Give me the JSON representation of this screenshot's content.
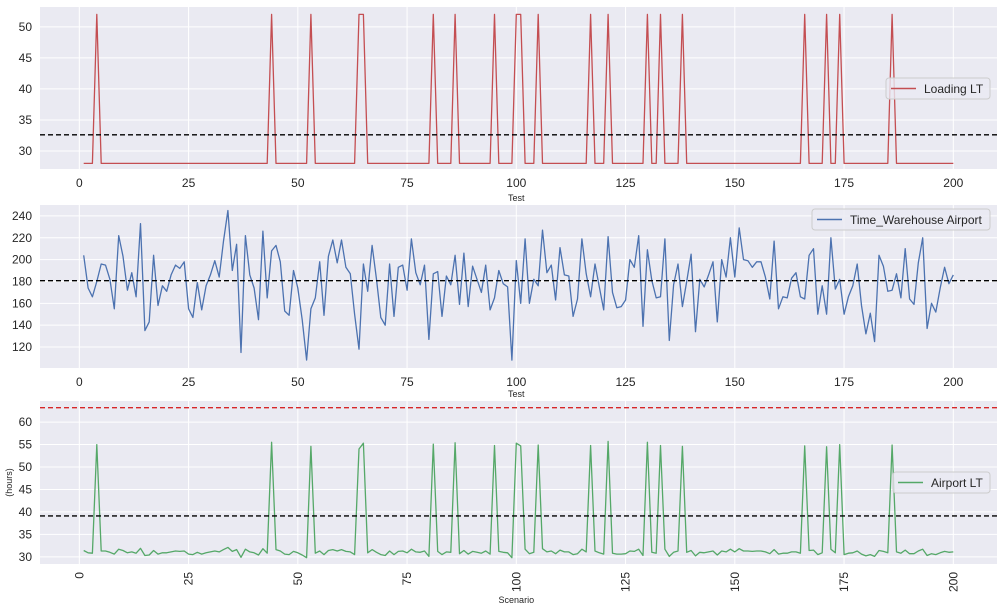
{
  "chart_data": [
    {
      "type": "line",
      "xlabel": "Test",
      "ylabel": "",
      "xlim": [
        -9,
        210
      ],
      "ylim": [
        27.1,
        53.2
      ],
      "xticks": [
        0,
        25,
        50,
        75,
        100,
        125,
        150,
        175,
        200
      ],
      "yticks": [
        30,
        35,
        40,
        45,
        50
      ],
      "grid": true,
      "legend_position": "center-right",
      "series": [
        {
          "name": "Loading LT",
          "color": "#c44e52",
          "x_start": 1,
          "baseline": 28,
          "spike_value": 52,
          "spike_x": [
            4,
            44,
            53,
            64,
            65,
            81,
            86,
            95,
            100,
            101,
            105,
            117,
            121,
            130,
            133,
            138,
            166,
            171,
            174,
            186
          ],
          "x_end": 200
        }
      ],
      "hlines": [
        {
          "y": 32.6,
          "color": "#000000",
          "style": "dashed"
        }
      ]
    },
    {
      "type": "line",
      "xlabel": "Test",
      "ylabel": "",
      "xlim": [
        -9,
        210
      ],
      "ylim": [
        100.8,
        250
      ],
      "xticks": [
        0,
        25,
        50,
        75,
        100,
        125,
        150,
        175,
        200
      ],
      "yticks": [
        120,
        140,
        160,
        180,
        200,
        220,
        240
      ],
      "grid": true,
      "legend_position": "top-right",
      "series": [
        {
          "name": "Time_Warehouse Airport",
          "color": "#4c72b0",
          "x_start": 1,
          "values": [
            204,
            174,
            166,
            180,
            196,
            195,
            182,
            155,
            222,
            203,
            172,
            188,
            166,
            233,
            135,
            143,
            204,
            158,
            176,
            171,
            186,
            195,
            192,
            198,
            155,
            147,
            179,
            154,
            176,
            186,
            199,
            184,
            217,
            245,
            190,
            214,
            115,
            222,
            186,
            174,
            145,
            226,
            165,
            208,
            213,
            198,
            153,
            149,
            190,
            174,
            145,
            108,
            155,
            165,
            198,
            149,
            203,
            218,
            197,
            218,
            193,
            187,
            150,
            118,
            196,
            171,
            213,
            182,
            147,
            140,
            196,
            148,
            193,
            195,
            172,
            219,
            188,
            177,
            195,
            127,
            187,
            189,
            148,
            185,
            177,
            204,
            159,
            206,
            157,
            194,
            182,
            170,
            195,
            154,
            165,
            190,
            178,
            175,
            108,
            199,
            160,
            219,
            160,
            182,
            176,
            227,
            188,
            195,
            163,
            211,
            186,
            185,
            148,
            164,
            219,
            187,
            166,
            196,
            175,
            154,
            221,
            170,
            156,
            157,
            163,
            200,
            193,
            222,
            139,
            209,
            181,
            165,
            166,
            219,
            126,
            177,
            196,
            157,
            180,
            205,
            134,
            182,
            175,
            186,
            198,
            143,
            200,
            184,
            220,
            184,
            229,
            200,
            199,
            193,
            198,
            198,
            184,
            164,
            217,
            155,
            166,
            165,
            183,
            188,
            166,
            164,
            204,
            210,
            150,
            176,
            150,
            220,
            173,
            182,
            150,
            166,
            176,
            196,
            158,
            132,
            151,
            125,
            204,
            194,
            171,
            172,
            187,
            165,
            210,
            164,
            159,
            197,
            220,
            137,
            160,
            152,
            174,
            193,
            178,
            186
          ]
        }
      ],
      "hlines": [
        {
          "y": 180.7,
          "color": "#000000",
          "style": "dashed"
        }
      ]
    },
    {
      "type": "line",
      "xlabel": "Scenario",
      "ylabel": "(hours)",
      "xlim": [
        -9,
        210
      ],
      "ylim": [
        28.4,
        64.7
      ],
      "xticks": [
        0,
        25,
        50,
        75,
        100,
        125,
        150,
        175,
        200
      ],
      "xtick_rotation": 90,
      "yticks": [
        30,
        35,
        40,
        45,
        50,
        55,
        60
      ],
      "grid": true,
      "legend_position": "center-right",
      "series": [
        {
          "name": "Airport LT",
          "color": "#55a868",
          "x_start": 1,
          "values": [
            31.4,
            30.9,
            30.8,
            55.0,
            31.3,
            31.3,
            31.0,
            30.6,
            31.7,
            31.4,
            30.9,
            31.1,
            30.8,
            31.9,
            30.3,
            30.4,
            31.4,
            30.6,
            30.9,
            30.9,
            31.1,
            31.3,
            31.2,
            31.3,
            30.6,
            30.5,
            31.0,
            30.6,
            30.9,
            31.1,
            31.3,
            31.1,
            31.6,
            32.1,
            31.2,
            31.6,
            29.9,
            31.7,
            31.1,
            30.9,
            30.4,
            31.8,
            30.8,
            55.5,
            31.6,
            31.3,
            30.6,
            30.5,
            31.2,
            30.9,
            30.4,
            29.8,
            54.6,
            30.8,
            31.3,
            30.5,
            31.4,
            31.6,
            31.3,
            31.6,
            31.2,
            31.1,
            30.5,
            54.0,
            55.3,
            30.9,
            31.6,
            31.0,
            30.5,
            30.3,
            31.3,
            30.5,
            31.2,
            31.3,
            30.9,
            31.7,
            31.1,
            31.0,
            31.3,
            30.1,
            55.1,
            31.2,
            30.5,
            31.1,
            31.0,
            55.4,
            30.7,
            31.4,
            30.6,
            31.2,
            31.0,
            30.8,
            31.3,
            30.6,
            54.8,
            31.2,
            31.0,
            30.9,
            29.8,
            55.3,
            54.7,
            31.7,
            30.7,
            31.0,
            54.9,
            31.8,
            31.1,
            31.3,
            30.7,
            31.5,
            31.1,
            31.1,
            30.5,
            30.7,
            31.7,
            31.1,
            54.8,
            31.3,
            30.9,
            30.6,
            55.7,
            30.8,
            30.6,
            30.6,
            30.7,
            31.3,
            31.2,
            31.7,
            30.3,
            55.5,
            31.0,
            30.8,
            54.8,
            31.7,
            30.1,
            31.0,
            31.3,
            54.6,
            31.0,
            31.4,
            30.2,
            31.0,
            30.9,
            31.1,
            31.3,
            30.4,
            31.3,
            31.1,
            31.7,
            31.1,
            31.8,
            31.3,
            31.3,
            31.2,
            31.3,
            31.3,
            31.1,
            30.7,
            31.6,
            30.6,
            30.8,
            30.8,
            31.1,
            31.1,
            30.8,
            54.7,
            31.4,
            31.5,
            30.5,
            30.9,
            54.5,
            31.7,
            30.9,
            55.0,
            30.5,
            30.8,
            30.9,
            31.3,
            30.6,
            30.2,
            30.5,
            30.1,
            31.4,
            31.2,
            30.9,
            54.9,
            31.1,
            30.8,
            31.5,
            30.7,
            30.7,
            31.3,
            31.7,
            30.3,
            30.7,
            30.5,
            30.9,
            31.2,
            31.0,
            31.1
          ]
        }
      ],
      "hlines": [
        {
          "y": 63.2,
          "color": "#d62728",
          "style": "dashed"
        },
        {
          "y": 39.1,
          "color": "#000000",
          "style": "dashed"
        }
      ]
    }
  ]
}
